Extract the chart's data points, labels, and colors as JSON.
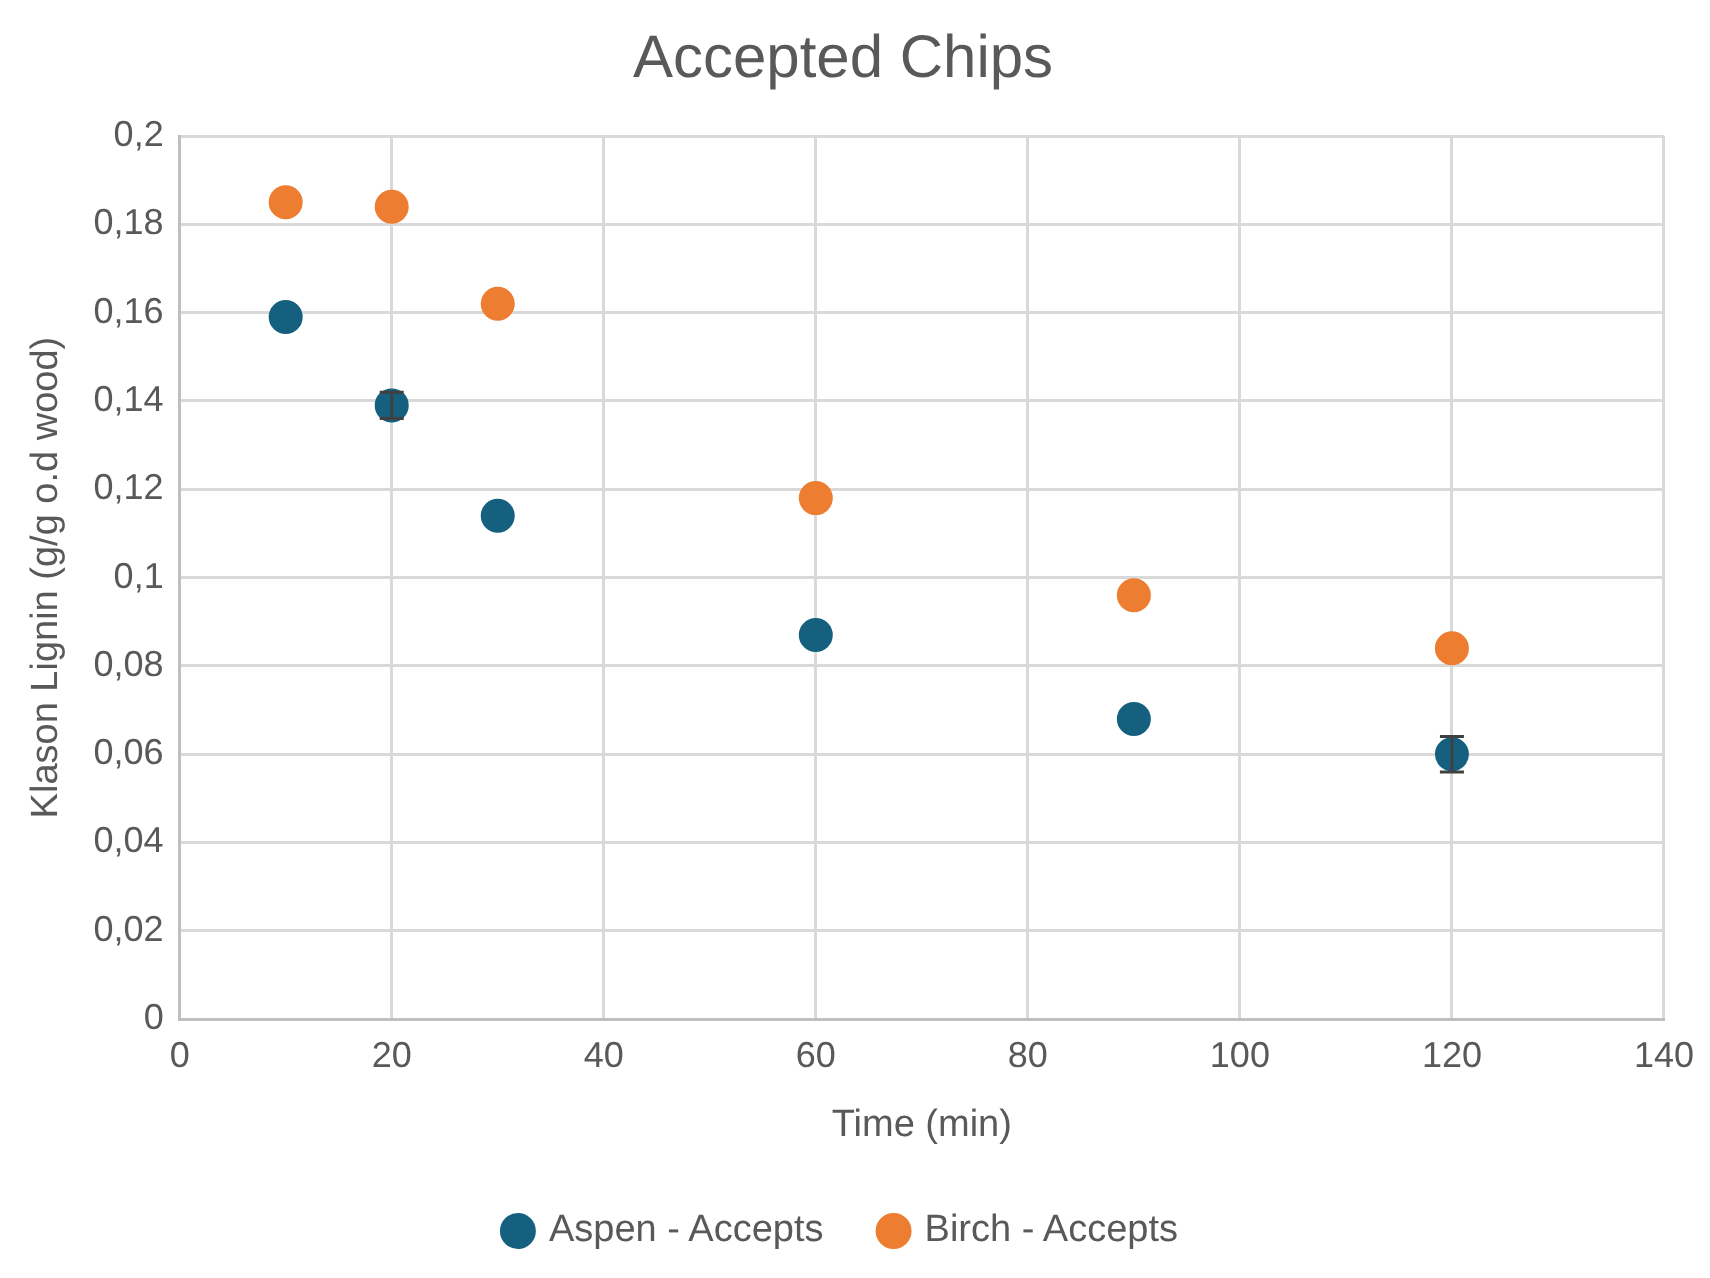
{
  "chart_data": {
    "type": "scatter",
    "title": "Accepted Chips",
    "xlabel": "Time (min)",
    "ylabel": "Klason Lignin (g/g o.d wood)",
    "series": [
      {
        "name": "Aspen - Accepts",
        "color": "#16607f",
        "x": [
          10,
          20,
          30,
          60,
          90,
          120
        ],
        "values": [
          0.159,
          0.139,
          0.114,
          0.087,
          0.068,
          0.06
        ],
        "errors": [
          null,
          0.003,
          null,
          null,
          null,
          0.004
        ]
      },
      {
        "name": "Birch - Accepts",
        "color": "#ed7d31",
        "x": [
          10,
          20,
          30,
          60,
          90,
          120
        ],
        "values": [
          0.185,
          0.184,
          0.162,
          0.118,
          0.096,
          0.084
        ]
      }
    ],
    "xlim": [
      0,
      140
    ],
    "xticks": [
      0,
      20,
      40,
      60,
      80,
      100,
      120,
      140
    ],
    "ylim": [
      0,
      0.2
    ],
    "yticks": [
      {
        "value": 0,
        "label": "0"
      },
      {
        "value": 0.02,
        "label": "0,02"
      },
      {
        "value": 0.04,
        "label": "0,04"
      },
      {
        "value": 0.06,
        "label": "0,06"
      },
      {
        "value": 0.08,
        "label": "0,08"
      },
      {
        "value": 0.1,
        "label": "0,1"
      },
      {
        "value": 0.12,
        "label": "0,12"
      },
      {
        "value": 0.14,
        "label": "0,14"
      },
      {
        "value": 0.16,
        "label": "0,16"
      },
      {
        "value": 0.18,
        "label": "0,18"
      },
      {
        "value": 0.2,
        "label": "0,2"
      }
    ],
    "grid": true,
    "legend": "bottom",
    "marker": "circle"
  }
}
